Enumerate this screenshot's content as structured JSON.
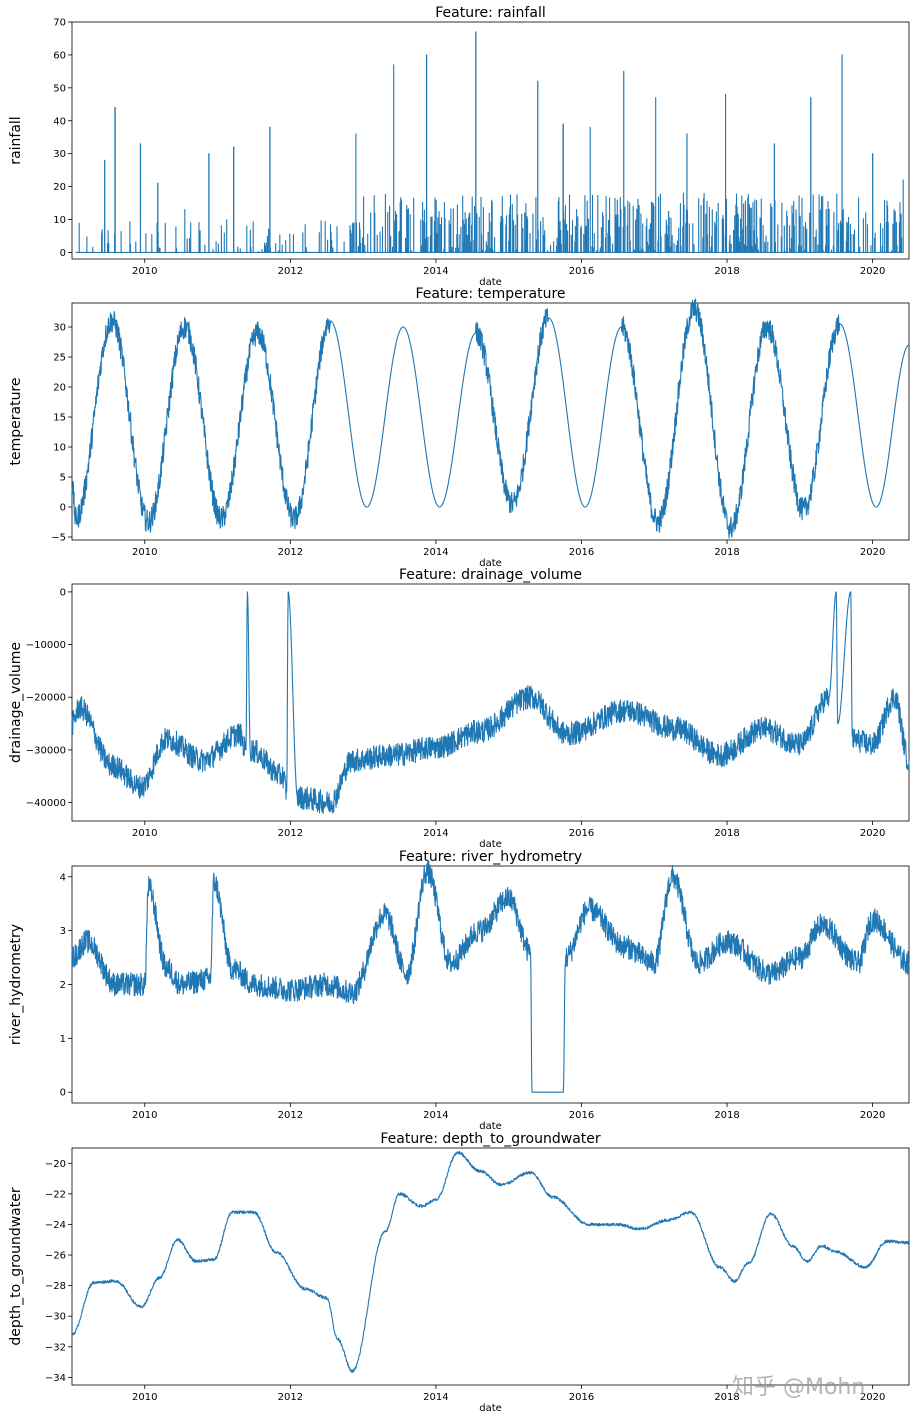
{
  "watermark": "知乎 @Mohn",
  "chart_data": [
    {
      "type": "bar",
      "title": "Feature: rainfall",
      "xlabel": "date",
      "ylabel": "rainfall",
      "xlim": [
        2009.0,
        2020.5
      ],
      "ylim": [
        -2,
        70
      ],
      "xticks": [
        2010,
        2012,
        2014,
        2016,
        2018,
        2020
      ],
      "yticks": [
        0,
        10,
        20,
        30,
        40,
        50,
        60,
        70
      ],
      "baseline": 0,
      "series": [
        {
          "name": "rainfall",
          "x": [
            2009.45,
            2009.59,
            2009.94,
            2010.18,
            2010.55,
            2010.88,
            2011.22,
            2011.72,
            2012.9,
            2013.42,
            2013.87,
            2014.55,
            2015.4,
            2015.75,
            2016.12,
            2016.58,
            2017.02,
            2017.45,
            2017.98,
            2018.65,
            2019.15,
            2019.58,
            2020.0,
            2020.42
          ],
          "values": [
            28,
            44,
            33,
            21,
            13,
            30,
            32,
            38,
            36,
            57,
            60,
            67,
            52,
            39,
            38,
            55,
            47,
            36,
            48,
            33,
            47,
            60,
            30,
            22
          ]
        }
      ]
    },
    {
      "type": "line",
      "title": "Feature: temperature",
      "xlabel": "date",
      "ylabel": "temperature",
      "xlim": [
        2009.0,
        2020.5
      ],
      "ylim": [
        -5.5,
        34
      ],
      "xticks": [
        2010,
        2012,
        2014,
        2016,
        2018,
        2020
      ],
      "yticks": [
        -5,
        0,
        5,
        10,
        15,
        20,
        25,
        30
      ],
      "series": [
        {
          "name": "temperature",
          "x": [
            2009.0,
            2009.05,
            2009.55,
            2010.05,
            2010.55,
            2011.05,
            2011.55,
            2012.05,
            2012.55,
            2013.05,
            2013.55,
            2014.05,
            2014.55,
            2015.05,
            2015.55,
            2016.05,
            2016.55,
            2017.05,
            2017.55,
            2018.05,
            2018.55,
            2019.05,
            2019.55,
            2020.05,
            2020.5
          ],
          "values": [
            4,
            -2,
            31,
            -2.5,
            30,
            -2,
            29,
            -2,
            31,
            0,
            30,
            0,
            29,
            0.5,
            31.5,
            0,
            30,
            -2.5,
            33,
            -3.5,
            30,
            -0.5,
            30.5,
            0,
            27
          ]
        }
      ]
    },
    {
      "type": "line",
      "title": "Feature: drainage_volume",
      "xlabel": "date",
      "ylabel": "drainage_volume",
      "xlim": [
        2009.0,
        2020.5
      ],
      "ylim": [
        -43500,
        1500
      ],
      "xticks": [
        2010,
        2012,
        2014,
        2016,
        2018,
        2020
      ],
      "yticks": [
        -40000,
        -30000,
        -20000,
        -10000,
        0
      ],
      "series": [
        {
          "name": "drainage_volume",
          "x": [
            2009.0,
            2009.1,
            2009.55,
            2009.95,
            2010.3,
            2010.8,
            2011.3,
            2011.39,
            2011.41,
            2011.45,
            2011.9,
            2011.95,
            2011.97,
            2012.1,
            2012.55,
            2012.85,
            2013.4,
            2014.0,
            2014.6,
            2015.3,
            2015.8,
            2016.6,
            2017.3,
            2017.9,
            2018.5,
            2019.0,
            2019.4,
            2019.5,
            2019.52,
            2019.7,
            2019.72,
            2020.0,
            2020.3,
            2020.5
          ],
          "values": [
            -25000,
            -22000,
            -33000,
            -37000,
            -28000,
            -32000,
            -27000,
            -30000,
            0,
            -30000,
            -35000,
            -38000,
            0,
            -39000,
            -40000,
            -32000,
            -31000,
            -29500,
            -26500,
            -20000,
            -27000,
            -22500,
            -26000,
            -31000,
            -26000,
            -29000,
            -20000,
            0,
            -25000,
            0,
            -28000,
            -29000,
            -20000,
            -32000
          ]
        }
      ]
    },
    {
      "type": "line",
      "title": "Feature: river_hydrometry",
      "xlabel": "date",
      "ylabel": "river_hydrometry",
      "xlim": [
        2009.0,
        2020.5
      ],
      "ylim": [
        -0.2,
        4.2
      ],
      "xticks": [
        2010,
        2012,
        2014,
        2016,
        2018,
        2020
      ],
      "yticks": [
        0,
        1,
        2,
        3,
        4
      ],
      "series": [
        {
          "name": "river_hydrometry",
          "x": [
            2009.0,
            2009.2,
            2009.6,
            2010.0,
            2010.05,
            2010.3,
            2010.5,
            2010.9,
            2010.95,
            2011.2,
            2011.5,
            2012.0,
            2012.5,
            2012.85,
            2013.3,
            2013.6,
            2013.88,
            2014.2,
            2014.6,
            2015.0,
            2015.3,
            2015.32,
            2015.75,
            2015.78,
            2016.1,
            2016.6,
            2017.0,
            2017.25,
            2017.6,
            2018.0,
            2018.6,
            2019.0,
            2019.3,
            2019.8,
            2020.0,
            2020.5
          ],
          "values": [
            2.5,
            2.8,
            2.0,
            2.0,
            3.8,
            2.3,
            2.0,
            2.1,
            3.9,
            2.3,
            2.0,
            1.9,
            2.0,
            1.85,
            3.3,
            2.2,
            4.1,
            2.4,
            3.0,
            3.6,
            2.6,
            0,
            0,
            2.5,
            3.4,
            2.7,
            2.4,
            4.0,
            2.4,
            2.8,
            2.2,
            2.5,
            3.1,
            2.4,
            3.2,
            2.4
          ]
        }
      ]
    },
    {
      "type": "line",
      "title": "Feature: depth_to_groundwater",
      "xlabel": "date",
      "ylabel": "depth_to_groundwater",
      "xlim": [
        2009.0,
        2020.5
      ],
      "ylim": [
        -34.5,
        -19.0
      ],
      "xticks": [
        2010,
        2012,
        2014,
        2016,
        2018,
        2020
      ],
      "yticks": [
        -34,
        -32,
        -30,
        -28,
        -26,
        -24,
        -22,
        -20
      ],
      "series": [
        {
          "name": "depth_to_groundwater",
          "x": [
            2009.0,
            2009.3,
            2009.6,
            2009.95,
            2010.2,
            2010.45,
            2010.7,
            2010.95,
            2011.2,
            2011.5,
            2011.8,
            2012.2,
            2012.5,
            2012.65,
            2012.85,
            2013.3,
            2013.5,
            2013.8,
            2014.0,
            2014.3,
            2014.6,
            2014.9,
            2015.3,
            2015.6,
            2016.1,
            2016.5,
            2016.8,
            2017.2,
            2017.5,
            2017.9,
            2018.1,
            2018.3,
            2018.6,
            2018.9,
            2019.1,
            2019.3,
            2019.5,
            2019.9,
            2020.2,
            2020.5
          ],
          "values": [
            -31.2,
            -27.8,
            -27.7,
            -29.4,
            -27.5,
            -25.0,
            -26.4,
            -26.3,
            -23.2,
            -23.2,
            -25.8,
            -28.2,
            -28.8,
            -31.5,
            -33.6,
            -24.5,
            -22.0,
            -22.8,
            -22.4,
            -19.3,
            -20.5,
            -21.4,
            -20.6,
            -22.2,
            -24.0,
            -24.0,
            -24.3,
            -23.7,
            -23.2,
            -26.8,
            -27.7,
            -26.5,
            -23.3,
            -25.4,
            -26.4,
            -25.4,
            -25.8,
            -26.8,
            -25.1,
            -25.2
          ]
        }
      ]
    }
  ]
}
